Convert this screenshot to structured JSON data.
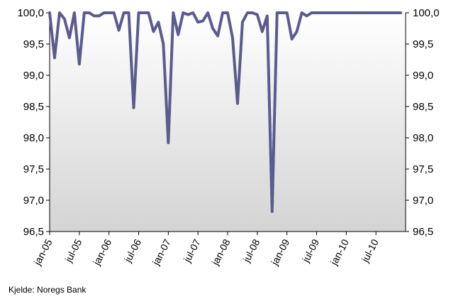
{
  "chart_data": {
    "type": "line",
    "title": "",
    "xlabel": "",
    "ylabel": "",
    "ylim": [
      96.5,
      100.0
    ],
    "y_ticks": [
      "100,0",
      "99,5",
      "99,0",
      "98,5",
      "98,0",
      "97,5",
      "97,0",
      "96,5"
    ],
    "y_tick_values": [
      100.0,
      99.5,
      99.0,
      98.5,
      98.0,
      97.5,
      97.0,
      96.5
    ],
    "x_tick_labels": [
      "jan-05",
      "jul-05",
      "jan-06",
      "jul-06",
      "jan-07",
      "jul-07",
      "jan-08",
      "jul-08",
      "jan-09",
      "jul-09",
      "jan-10",
      "jul-10"
    ],
    "x_start": "jan-05",
    "grid": false,
    "legend": "none",
    "series": [
      {
        "color": "#5b5b8f",
        "values": [
          100.0,
          99.28,
          100.0,
          99.9,
          99.6,
          100.0,
          99.18,
          100.0,
          100.0,
          99.95,
          99.95,
          100.0,
          100.0,
          100.0,
          99.72,
          100.0,
          100.0,
          98.48,
          100.0,
          100.0,
          100.0,
          99.7,
          99.85,
          99.5,
          97.92,
          100.0,
          99.65,
          100.0,
          99.97,
          100.0,
          99.85,
          99.87,
          100.0,
          99.75,
          99.63,
          100.0,
          100.0,
          99.6,
          98.55,
          99.85,
          100.0,
          100.0,
          99.97,
          99.7,
          99.95,
          96.82,
          100.0,
          100.0,
          100.0,
          99.58,
          99.7,
          100.0,
          99.95,
          100.0,
          100.0,
          100.0,
          100.0,
          100.0,
          100.0,
          100.0,
          100.0,
          100.0,
          100.0,
          100.0,
          100.0,
          100.0,
          100.0,
          100.0,
          100.0,
          100.0,
          100.0,
          100.0
        ]
      }
    ]
  },
  "source": "Kjelde: Noregs Bank"
}
